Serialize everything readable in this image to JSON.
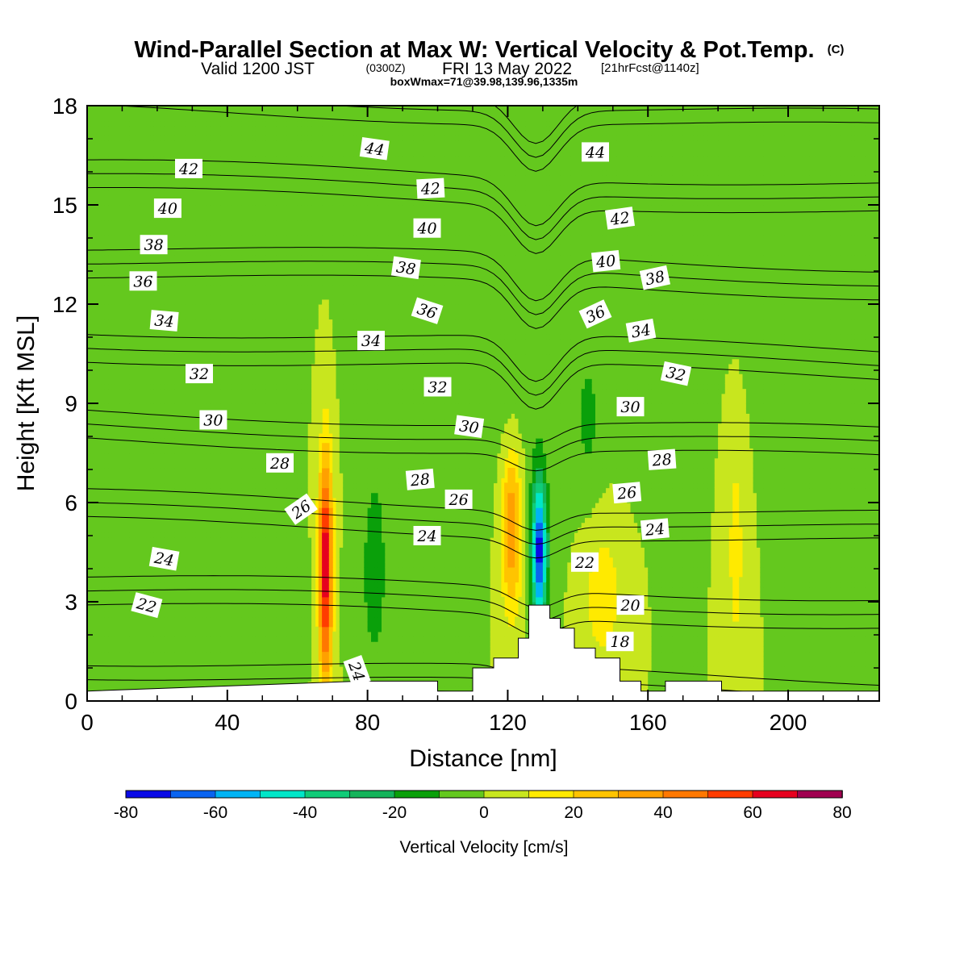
{
  "title": {
    "line1": "Wind-Parallel Section at Max W: Vertical Velocity & Pot.Temp.",
    "copyright": "(C)",
    "line2_valid": "Valid 1200 JST",
    "line2_utc": "(0300Z)",
    "line2_date": "FRI 13 May 2022",
    "line2_fcst": "[21hrFcst@1140z]",
    "line3": "boxWmax=71@39.98,139.96,1335m"
  },
  "chart_data": {
    "type": "heatmap",
    "xlabel": "Distance [nm]",
    "ylabel": "Height [Kft MSL]",
    "xlim": [
      0,
      226
    ],
    "ylim": [
      0,
      18
    ],
    "xticks": [
      0,
      40,
      80,
      120,
      160,
      200
    ],
    "yticks": [
      0,
      3,
      6,
      9,
      12,
      15,
      18
    ],
    "x_tick_labels": [
      "0",
      "40",
      "80",
      "120",
      "160",
      "200"
    ],
    "y_tick_labels": [
      "0",
      "3",
      "6",
      "9",
      "12",
      "15",
      "18"
    ],
    "colorbar": {
      "label": "Vertical Velocity [cm/s]",
      "levels": [
        -80,
        -70,
        -60,
        -50,
        -40,
        -30,
        -20,
        -10,
        0,
        10,
        20,
        30,
        40,
        50,
        60,
        70,
        80
      ],
      "colors": [
        "#0a0ae6",
        "#0a64f0",
        "#00b4f5",
        "#00e6c8",
        "#10cc78",
        "#14b45a",
        "#0aa00a",
        "#64c81e",
        "#c8e61e",
        "#ffea00",
        "#ffc400",
        "#ffa000",
        "#ff7800",
        "#ff3c00",
        "#e6001e",
        "#a00050",
        "#5a0a8c"
      ],
      "tick_labels": [
        "-80",
        "-60",
        "-40",
        "-20",
        "0",
        "20",
        "40",
        "60",
        "80"
      ]
    },
    "background_color": "#ffea00",
    "terrain": [
      [
        78,
        0.6
      ],
      [
        100,
        0.6
      ],
      [
        100,
        0.3
      ],
      [
        110,
        0.3
      ],
      [
        110,
        1.0
      ],
      [
        116,
        1.0
      ],
      [
        116,
        1.3
      ],
      [
        123,
        1.3
      ],
      [
        123,
        1.9
      ],
      [
        126,
        1.9
      ],
      [
        126,
        2.9
      ],
      [
        132,
        2.9
      ],
      [
        132,
        2.5
      ],
      [
        135,
        2.5
      ],
      [
        135,
        2.2
      ],
      [
        139,
        2.2
      ],
      [
        139,
        1.6
      ],
      [
        145,
        1.6
      ],
      [
        145,
        1.3
      ],
      [
        152,
        1.3
      ],
      [
        152,
        0.6
      ],
      [
        158,
        0.6
      ],
      [
        158,
        0.3
      ],
      [
        165,
        0.3
      ],
      [
        165,
        0.6
      ],
      [
        181,
        0.6
      ],
      [
        181,
        0.3
      ],
      [
        226,
        0.3
      ]
    ],
    "w_features": [
      {
        "name": "updraft-70nm",
        "value": 70,
        "x": 68,
        "y": 4.0,
        "halfwidth": 2.0,
        "halfheight": 3.5
      },
      {
        "name": "updraft-118nm",
        "value": 40,
        "x": 121,
        "y": 5.2,
        "halfwidth": 3.0,
        "halfheight": 2.5
      },
      {
        "name": "downdraft-128nm",
        "value": -75,
        "x": 129,
        "y": 4.5,
        "halfwidth": 2.2,
        "halfheight": 2.2
      },
      {
        "name": "updraft-147nm",
        "value": 20,
        "x": 147,
        "y": 3.2,
        "halfwidth": 5.0,
        "halfheight": 1.8
      },
      {
        "name": "updraft-185nm",
        "value": 15,
        "x": 185,
        "y": 4.5,
        "halfwidth": 2.5,
        "halfheight": 3.5
      },
      {
        "name": "weak-down-82nm",
        "value": -15,
        "x": 82,
        "y": 4.0,
        "halfwidth": 4.0,
        "halfheight": 3.5
      },
      {
        "name": "weak-down-upper",
        "value": -10,
        "x": 115,
        "y": 12.0,
        "halfwidth": 25.0,
        "halfheight": 5.0
      },
      {
        "name": "weak-down-right",
        "value": -10,
        "x": 210,
        "y": 14.0,
        "halfwidth": 20.0,
        "halfheight": 4.0
      },
      {
        "name": "weak-down-left",
        "value": -8,
        "x": 30,
        "y": 3.0,
        "halfwidth": 30.0,
        "halfheight": 1.5
      },
      {
        "name": "weak-down-mid",
        "value": -12,
        "x": 143,
        "y": 8.5,
        "halfwidth": 3.0,
        "halfheight": 2.0
      }
    ],
    "theta_contours": {
      "levels": [
        16,
        18,
        20,
        22,
        24,
        26,
        28,
        30,
        32,
        34,
        36,
        38,
        40,
        42,
        44,
        46
      ],
      "labels": [
        {
          "text": "44",
          "x": 82,
          "y": 16.7,
          "angle": 8
        },
        {
          "text": "44",
          "x": 145,
          "y": 16.6,
          "angle": 0
        },
        {
          "text": "42",
          "x": 29,
          "y": 16.1,
          "angle": 0
        },
        {
          "text": "42",
          "x": 98,
          "y": 15.5,
          "angle": -3
        },
        {
          "text": "42",
          "x": 152,
          "y": 14.6,
          "angle": -8
        },
        {
          "text": "40",
          "x": 23,
          "y": 14.9,
          "angle": 0
        },
        {
          "text": "40",
          "x": 97,
          "y": 14.3,
          "angle": 0
        },
        {
          "text": "40",
          "x": 148,
          "y": 13.3,
          "angle": -6
        },
        {
          "text": "38",
          "x": 19,
          "y": 13.8,
          "angle": 0
        },
        {
          "text": "38",
          "x": 91,
          "y": 13.1,
          "angle": 8
        },
        {
          "text": "38",
          "x": 162,
          "y": 12.8,
          "angle": -12
        },
        {
          "text": "36",
          "x": 16,
          "y": 12.7,
          "angle": 0
        },
        {
          "text": "36",
          "x": 97,
          "y": 11.8,
          "angle": 18
        },
        {
          "text": "36",
          "x": 145,
          "y": 11.7,
          "angle": -25
        },
        {
          "text": "34",
          "x": 22,
          "y": 11.5,
          "angle": 5
        },
        {
          "text": "34",
          "x": 81,
          "y": 10.9,
          "angle": 0
        },
        {
          "text": "34",
          "x": 158,
          "y": 11.2,
          "angle": -10
        },
        {
          "text": "32",
          "x": 32,
          "y": 9.9,
          "angle": 0
        },
        {
          "text": "32",
          "x": 100,
          "y": 9.5,
          "angle": 0
        },
        {
          "text": "32",
          "x": 168,
          "y": 9.9,
          "angle": 12
        },
        {
          "text": "30",
          "x": 36,
          "y": 8.5,
          "angle": 0
        },
        {
          "text": "30",
          "x": 109,
          "y": 8.3,
          "angle": 8
        },
        {
          "text": "30",
          "x": 155,
          "y": 8.9,
          "angle": 0
        },
        {
          "text": "28",
          "x": 55,
          "y": 7.2,
          "angle": 0
        },
        {
          "text": "28",
          "x": 95,
          "y": 6.7,
          "angle": -5
        },
        {
          "text": "28",
          "x": 164,
          "y": 7.3,
          "angle": -4
        },
        {
          "text": "26",
          "x": 61,
          "y": 5.8,
          "angle": -35
        },
        {
          "text": "26",
          "x": 106,
          "y": 6.1,
          "angle": 0
        },
        {
          "text": "26",
          "x": 154,
          "y": 6.3,
          "angle": -5
        },
        {
          "text": "24",
          "x": 22,
          "y": 4.3,
          "angle": 10
        },
        {
          "text": "24",
          "x": 97,
          "y": 5.0,
          "angle": 0
        },
        {
          "text": "24",
          "x": 162,
          "y": 5.2,
          "angle": -5
        },
        {
          "text": "24",
          "x": 77,
          "y": 0.9,
          "angle": 70
        },
        {
          "text": "22",
          "x": 17,
          "y": 2.9,
          "angle": 15
        },
        {
          "text": "22",
          "x": 142,
          "y": 4.2,
          "angle": 0
        },
        {
          "text": "20",
          "x": 155,
          "y": 2.9,
          "angle": 0
        },
        {
          "text": "18",
          "x": 152,
          "y": 1.8,
          "angle": 0
        }
      ]
    }
  }
}
